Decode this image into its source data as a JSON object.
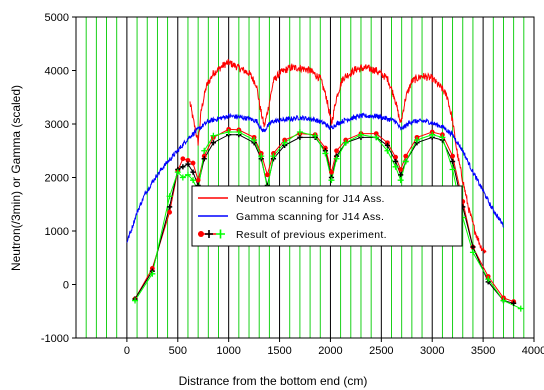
{
  "chart_data": {
    "type": "line",
    "title": "",
    "xlabel": "Distrance from the bottom end (cm)",
    "ylabel": "Neutron(/3min) or Gamma (scaled)",
    "xlim": [
      -500,
      4000
    ],
    "ylim": [
      -1000,
      5000
    ],
    "x_ticks": [
      0,
      500,
      1000,
      1500,
      2000,
      2500,
      3000,
      3500,
      4000
    ],
    "y_ticks": [
      -1000,
      0,
      1000,
      2000,
      3000,
      4000,
      5000
    ],
    "x_tick_labels": [
      "0",
      "500",
      "1000",
      "1500",
      "2000",
      "2500",
      "3000",
      "3500",
      "4000"
    ],
    "y_tick_labels": [
      "-1000",
      "0",
      "1000",
      "2000",
      "3000",
      "4000",
      "5000"
    ],
    "grid_x_major_color": "#000000",
    "grid_x_minor_color": "#00cc00",
    "grid_x_minor_step": 100,
    "legend_placement": "center-bottom",
    "legend": [
      {
        "label": "Neutron scanning for J14 Ass.",
        "color": "#ff0000",
        "marker": "line"
      },
      {
        "label": "Gamma scanning for J14 Ass.",
        "color": "#0000ff",
        "marker": "line"
      },
      {
        "label": "Result of previous experiment.",
        "color": "#ff0000",
        "marker": "markers"
      }
    ],
    "series": [
      {
        "color": "#ff0000",
        "style": "noisy-line",
        "points": [
          [
            620,
            3400
          ],
          [
            660,
            3000
          ],
          [
            700,
            2650
          ],
          [
            730,
            3250
          ],
          [
            780,
            3700
          ],
          [
            850,
            3950
          ],
          [
            950,
            4100
          ],
          [
            1000,
            4150
          ],
          [
            1100,
            4050
          ],
          [
            1200,
            3950
          ],
          [
            1270,
            3750
          ],
          [
            1310,
            3300
          ],
          [
            1350,
            2950
          ],
          [
            1390,
            3300
          ],
          [
            1440,
            3800
          ],
          [
            1500,
            3950
          ],
          [
            1600,
            4050
          ],
          [
            1700,
            4050
          ],
          [
            1800,
            4000
          ],
          [
            1900,
            3850
          ],
          [
            1960,
            3500
          ],
          [
            2010,
            3000
          ],
          [
            2060,
            3500
          ],
          [
            2120,
            3850
          ],
          [
            2250,
            4020
          ],
          [
            2350,
            4050
          ],
          [
            2450,
            4000
          ],
          [
            2560,
            3850
          ],
          [
            2630,
            3500
          ],
          [
            2690,
            3000
          ],
          [
            2740,
            3500
          ],
          [
            2800,
            3800
          ],
          [
            2900,
            3900
          ],
          [
            3000,
            3850
          ],
          [
            3100,
            3650
          ],
          [
            3150,
            3500
          ],
          [
            3200,
            3050
          ],
          [
            3250,
            2400
          ],
          [
            3300,
            1950
          ],
          [
            3360,
            1400
          ],
          [
            3420,
            1000
          ],
          [
            3480,
            700
          ],
          [
            3530,
            600
          ]
        ]
      },
      {
        "color": "#0000ff",
        "style": "noisy-line",
        "points": [
          [
            0,
            800
          ],
          [
            40,
            1000
          ],
          [
            100,
            1350
          ],
          [
            180,
            1700
          ],
          [
            280,
            2000
          ],
          [
            380,
            2250
          ],
          [
            500,
            2500
          ],
          [
            600,
            2730
          ],
          [
            700,
            2900
          ],
          [
            800,
            3050
          ],
          [
            900,
            3100
          ],
          [
            1000,
            3150
          ],
          [
            1100,
            3130
          ],
          [
            1200,
            3100
          ],
          [
            1280,
            3050
          ],
          [
            1320,
            2900
          ],
          [
            1350,
            2870
          ],
          [
            1380,
            2950
          ],
          [
            1430,
            3050
          ],
          [
            1550,
            3080
          ],
          [
            1700,
            3120
          ],
          [
            1850,
            3080
          ],
          [
            1950,
            3000
          ],
          [
            2000,
            2920
          ],
          [
            2060,
            3000
          ],
          [
            2150,
            3080
          ],
          [
            2300,
            3150
          ],
          [
            2450,
            3150
          ],
          [
            2550,
            3100
          ],
          [
            2640,
            3050
          ],
          [
            2690,
            2900
          ],
          [
            2730,
            2950
          ],
          [
            2800,
            3050
          ],
          [
            2950,
            3050
          ],
          [
            3100,
            2950
          ],
          [
            3200,
            2800
          ],
          [
            3300,
            2500
          ],
          [
            3400,
            2100
          ],
          [
            3500,
            1750
          ],
          [
            3580,
            1450
          ],
          [
            3650,
            1250
          ],
          [
            3700,
            1100
          ]
        ]
      },
      {
        "color": "#ff0000",
        "style": "markers",
        "points": [
          [
            80,
            -270
          ],
          [
            250,
            300
          ],
          [
            420,
            1350
          ],
          [
            500,
            2130
          ],
          [
            550,
            2350
          ],
          [
            600,
            2320
          ],
          [
            650,
            2270
          ],
          [
            700,
            1950
          ],
          [
            760,
            2400
          ],
          [
            850,
            2750
          ],
          [
            1000,
            2900
          ],
          [
            1100,
            2890
          ],
          [
            1250,
            2750
          ],
          [
            1320,
            2450
          ],
          [
            1380,
            2050
          ],
          [
            1440,
            2450
          ],
          [
            1550,
            2700
          ],
          [
            1700,
            2820
          ],
          [
            1850,
            2800
          ],
          [
            1950,
            2550
          ],
          [
            2010,
            2100
          ],
          [
            2060,
            2500
          ],
          [
            2150,
            2700
          ],
          [
            2300,
            2820
          ],
          [
            2450,
            2820
          ],
          [
            2560,
            2650
          ],
          [
            2640,
            2380
          ],
          [
            2690,
            2150
          ],
          [
            2740,
            2400
          ],
          [
            2850,
            2750
          ],
          [
            3000,
            2850
          ],
          [
            3100,
            2800
          ],
          [
            3200,
            2400
          ],
          [
            3300,
            1550
          ],
          [
            3400,
            700
          ],
          [
            3550,
            150
          ],
          [
            3700,
            -250
          ],
          [
            3800,
            -320
          ]
        ]
      },
      {
        "color": "#000000",
        "style": "markers",
        "points": [
          [
            80,
            -270
          ],
          [
            250,
            250
          ],
          [
            420,
            1450
          ],
          [
            500,
            2150
          ],
          [
            550,
            2200
          ],
          [
            600,
            2250
          ],
          [
            650,
            2100
          ],
          [
            700,
            1850
          ],
          [
            760,
            2350
          ],
          [
            850,
            2650
          ],
          [
            1000,
            2800
          ],
          [
            1100,
            2800
          ],
          [
            1250,
            2650
          ],
          [
            1320,
            2350
          ],
          [
            1380,
            1850
          ],
          [
            1440,
            2350
          ],
          [
            1550,
            2600
          ],
          [
            1700,
            2750
          ],
          [
            1850,
            2750
          ],
          [
            1950,
            2500
          ],
          [
            2010,
            2000
          ],
          [
            2060,
            2400
          ],
          [
            2150,
            2650
          ],
          [
            2300,
            2750
          ],
          [
            2450,
            2750
          ],
          [
            2560,
            2600
          ],
          [
            2640,
            2300
          ],
          [
            2690,
            2050
          ],
          [
            2740,
            2300
          ],
          [
            2850,
            2650
          ],
          [
            3000,
            2750
          ],
          [
            3100,
            2700
          ],
          [
            3200,
            2300
          ],
          [
            3300,
            1450
          ],
          [
            3400,
            700
          ],
          [
            3550,
            50
          ],
          [
            3700,
            -300
          ],
          [
            3800,
            -350
          ]
        ]
      },
      {
        "color": "#00ff00",
        "style": "markers",
        "points": [
          [
            80,
            -300
          ],
          [
            250,
            200
          ],
          [
            420,
            1650
          ],
          [
            500,
            2100
          ],
          [
            550,
            2000
          ],
          [
            600,
            2050
          ],
          [
            650,
            1950
          ],
          [
            700,
            1750
          ],
          [
            760,
            2500
          ],
          [
            850,
            2780
          ],
          [
            1000,
            2850
          ],
          [
            1100,
            2850
          ],
          [
            1250,
            2700
          ],
          [
            1320,
            2400
          ],
          [
            1380,
            1800
          ],
          [
            1440,
            2400
          ],
          [
            1550,
            2650
          ],
          [
            1700,
            2850
          ],
          [
            1850,
            2780
          ],
          [
            1950,
            2450
          ],
          [
            2010,
            1950
          ],
          [
            2060,
            2350
          ],
          [
            2150,
            2650
          ],
          [
            2300,
            2800
          ],
          [
            2450,
            2750
          ],
          [
            2560,
            2500
          ],
          [
            2640,
            2200
          ],
          [
            2690,
            1950
          ],
          [
            2740,
            2300
          ],
          [
            2850,
            2700
          ],
          [
            3000,
            2800
          ],
          [
            3100,
            2750
          ],
          [
            3200,
            2150
          ],
          [
            3300,
            1250
          ],
          [
            3400,
            600
          ],
          [
            3550,
            100
          ],
          [
            3700,
            -300
          ],
          [
            3870,
            -450
          ]
        ]
      }
    ]
  }
}
